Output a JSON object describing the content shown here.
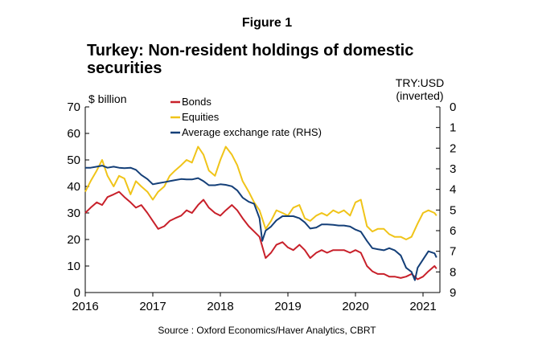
{
  "figure_label": "Figure 1",
  "source": "Source : Oxford Economics/Haver Analytics, CBRT",
  "colors": {
    "bonds": "#c8202a",
    "equities": "#f0c419",
    "fx": "#143f78"
  },
  "chart_data": {
    "type": "line",
    "title": "Turkey: Non-resident holdings of domestic securities",
    "ylabel": "$ billion",
    "y2label_line1": "TRY:USD",
    "y2label_line2": "(inverted)",
    "xlim": [
      2016.0,
      2021.25
    ],
    "ylim": [
      0,
      70
    ],
    "y2lim": [
      9,
      0
    ],
    "x_ticks": [
      2016,
      2017,
      2018,
      2019,
      2020,
      2021
    ],
    "x_tick_labels": [
      "2016",
      "2017",
      "2018",
      "2019",
      "2020",
      "2021"
    ],
    "y_ticks": [
      0,
      10,
      20,
      30,
      40,
      50,
      60,
      70
    ],
    "y_tick_labels": [
      "0",
      "10",
      "20",
      "30",
      "40",
      "50",
      "60",
      "70"
    ],
    "y2_ticks": [
      0,
      1,
      2,
      3,
      4,
      5,
      6,
      7,
      8,
      9
    ],
    "y2_tick_labels": [
      "0",
      "1",
      "2",
      "3",
      "4",
      "5",
      "6",
      "7",
      "8",
      "9"
    ],
    "legend": [
      "Bonds",
      "Equities",
      "Average exchange rate (RHS)"
    ],
    "series": [
      {
        "name": "Bonds",
        "axis": "left",
        "x": [
          2016.0,
          2016.08,
          2016.17,
          2016.25,
          2016.33,
          2016.42,
          2016.5,
          2016.58,
          2016.67,
          2016.75,
          2016.83,
          2016.92,
          2017.0,
          2017.08,
          2017.17,
          2017.25,
          2017.33,
          2017.42,
          2017.5,
          2017.58,
          2017.67,
          2017.75,
          2017.83,
          2017.92,
          2018.0,
          2018.08,
          2018.17,
          2018.25,
          2018.33,
          2018.42,
          2018.5,
          2018.58,
          2018.67,
          2018.75,
          2018.83,
          2018.92,
          2019.0,
          2019.08,
          2019.17,
          2019.25,
          2019.33,
          2019.42,
          2019.5,
          2019.58,
          2019.67,
          2019.75,
          2019.83,
          2019.92,
          2020.0,
          2020.08,
          2020.17,
          2020.25,
          2020.33,
          2020.42,
          2020.5,
          2020.58,
          2020.67,
          2020.75,
          2020.83,
          2020.92,
          2021.0,
          2021.08,
          2021.17,
          2021.2
        ],
        "values": [
          30,
          32,
          34,
          33,
          36,
          37,
          38,
          36,
          34,
          32,
          33,
          30,
          27,
          24,
          25,
          27,
          28,
          29,
          31,
          30,
          33,
          35,
          32,
          30,
          29,
          31,
          33,
          31,
          28,
          25,
          23,
          21,
          13,
          15,
          18,
          19,
          17,
          16,
          18,
          16,
          13,
          15,
          16,
          15,
          16,
          16,
          16,
          15,
          16,
          15,
          10,
          8,
          7,
          7,
          6,
          6,
          5.5,
          6,
          7,
          5,
          6,
          8,
          10,
          9
        ]
      },
      {
        "name": "Equities",
        "axis": "left",
        "x": [
          2016.0,
          2016.08,
          2016.17,
          2016.25,
          2016.33,
          2016.42,
          2016.5,
          2016.58,
          2016.67,
          2016.75,
          2016.83,
          2016.92,
          2017.0,
          2017.08,
          2017.17,
          2017.25,
          2017.33,
          2017.42,
          2017.5,
          2017.58,
          2017.67,
          2017.75,
          2017.83,
          2017.92,
          2018.0,
          2018.08,
          2018.17,
          2018.25,
          2018.33,
          2018.42,
          2018.5,
          2018.58,
          2018.67,
          2018.75,
          2018.83,
          2018.92,
          2019.0,
          2019.08,
          2019.17,
          2019.25,
          2019.33,
          2019.42,
          2019.5,
          2019.58,
          2019.67,
          2019.75,
          2019.83,
          2019.92,
          2020.0,
          2020.08,
          2020.17,
          2020.25,
          2020.33,
          2020.42,
          2020.5,
          2020.58,
          2020.67,
          2020.75,
          2020.83,
          2020.92,
          2021.0,
          2021.08,
          2021.17,
          2021.2
        ],
        "values": [
          38,
          42,
          46,
          50,
          44,
          40,
          44,
          43,
          37,
          42,
          40,
          38,
          35,
          38,
          40,
          44,
          46,
          48,
          50,
          49,
          55,
          52,
          46,
          44,
          50,
          55,
          52,
          48,
          42,
          38,
          34,
          31,
          24,
          27,
          31,
          30,
          29,
          32,
          33,
          28,
          27,
          29,
          30,
          29,
          31,
          30,
          31,
          29,
          34,
          35,
          25,
          23,
          24,
          24,
          22,
          21,
          21,
          20,
          21,
          26,
          30,
          31,
          30,
          29
        ]
      },
      {
        "name": "Average exchange rate (RHS)",
        "axis": "right",
        "x": [
          2016.0,
          2016.08,
          2016.17,
          2016.25,
          2016.33,
          2016.42,
          2016.5,
          2016.58,
          2016.67,
          2016.75,
          2016.83,
          2016.92,
          2017.0,
          2017.08,
          2017.17,
          2017.25,
          2017.33,
          2017.42,
          2017.5,
          2017.58,
          2017.67,
          2017.75,
          2017.83,
          2017.92,
          2018.0,
          2018.08,
          2018.17,
          2018.25,
          2018.33,
          2018.42,
          2018.5,
          2018.58,
          2018.62,
          2018.67,
          2018.75,
          2018.83,
          2018.92,
          2019.0,
          2019.08,
          2019.17,
          2019.25,
          2019.33,
          2019.42,
          2019.5,
          2019.58,
          2019.67,
          2019.75,
          2019.83,
          2019.92,
          2020.0,
          2020.08,
          2020.17,
          2020.25,
          2020.33,
          2020.42,
          2020.5,
          2020.58,
          2020.67,
          2020.75,
          2020.83,
          2020.88,
          2020.92,
          2021.0,
          2021.08,
          2021.17,
          2021.2
        ],
        "values": [
          2.95,
          2.95,
          2.9,
          2.85,
          2.95,
          2.9,
          2.95,
          2.97,
          2.95,
          3.05,
          3.3,
          3.5,
          3.75,
          3.7,
          3.65,
          3.6,
          3.55,
          3.5,
          3.52,
          3.52,
          3.45,
          3.6,
          3.8,
          3.8,
          3.75,
          3.78,
          3.85,
          4.05,
          4.4,
          4.6,
          4.7,
          5.4,
          6.5,
          6.0,
          5.8,
          5.5,
          5.3,
          5.3,
          5.3,
          5.4,
          5.6,
          5.9,
          5.85,
          5.7,
          5.7,
          5.72,
          5.75,
          5.75,
          5.8,
          5.95,
          6.05,
          6.5,
          6.85,
          6.9,
          6.95,
          6.85,
          6.95,
          7.2,
          7.8,
          8.0,
          8.4,
          7.8,
          7.4,
          7.0,
          7.1,
          7.3
        ]
      }
    ]
  }
}
